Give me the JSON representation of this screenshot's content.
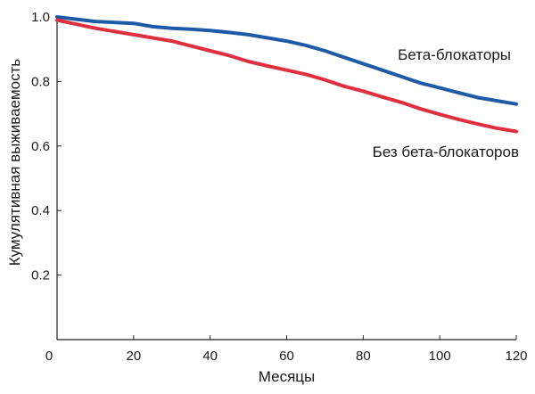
{
  "chart_data": {
    "type": "line",
    "title": "",
    "xlabel": "Месяцы",
    "ylabel": "Кумулятивная выживаемость",
    "xlim": [
      0,
      120
    ],
    "ylim": [
      0,
      1.0
    ],
    "x_ticks": [
      0,
      20,
      40,
      60,
      80,
      100,
      120
    ],
    "y_ticks": [
      0.2,
      0.4,
      0.6,
      0.8,
      1.0
    ],
    "x_tick_labels": [
      "0",
      "20",
      "40",
      "60",
      "80",
      "100",
      "120"
    ],
    "y_tick_labels": [
      "0.2",
      "0.4",
      "0.6",
      "0.8",
      "1.0"
    ],
    "grid": false,
    "legend": "inline-right",
    "series": [
      {
        "name": "Бета-блокаторы",
        "color": "#1f5aa6",
        "x": [
          0,
          10,
          20,
          25,
          30,
          35,
          40,
          45,
          50,
          55,
          60,
          65,
          70,
          75,
          80,
          85,
          90,
          95,
          100,
          105,
          110,
          115,
          120
        ],
        "y": [
          1.0,
          0.986,
          0.98,
          0.97,
          0.965,
          0.962,
          0.958,
          0.952,
          0.945,
          0.935,
          0.925,
          0.912,
          0.895,
          0.875,
          0.855,
          0.835,
          0.815,
          0.795,
          0.78,
          0.765,
          0.75,
          0.74,
          0.73
        ]
      },
      {
        "name": "Без бета-блокаторов",
        "color": "#e03040",
        "x": [
          0,
          10,
          20,
          25,
          30,
          35,
          40,
          45,
          50,
          55,
          60,
          65,
          70,
          75,
          80,
          85,
          90,
          95,
          100,
          105,
          110,
          115,
          120
        ],
        "y": [
          0.99,
          0.965,
          0.945,
          0.935,
          0.925,
          0.91,
          0.895,
          0.88,
          0.862,
          0.848,
          0.835,
          0.822,
          0.805,
          0.785,
          0.77,
          0.752,
          0.735,
          0.715,
          0.698,
          0.682,
          0.668,
          0.655,
          0.645
        ]
      }
    ]
  }
}
